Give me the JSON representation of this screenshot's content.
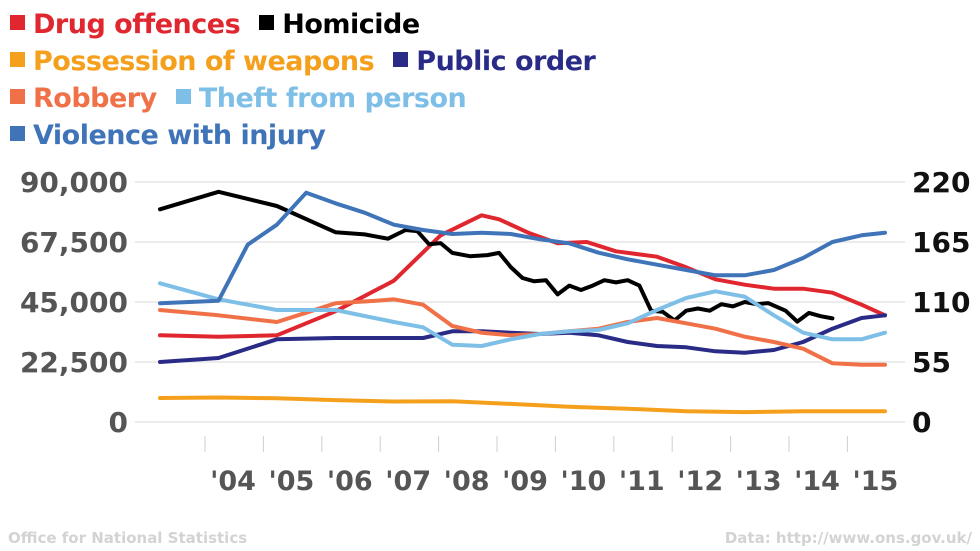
{
  "chart_data": {
    "type": "line",
    "x_labels": [
      "'04",
      "'05",
      "'06",
      "'07",
      "'08",
      "'09",
      "'10",
      "'11",
      "'12",
      "'13",
      "'14",
      "'15"
    ],
    "y_left": {
      "ticks": [
        0,
        22500,
        45000,
        67500,
        90000
      ],
      "tick_labels": [
        "0",
        "22,500",
        "45,000",
        "67,500",
        "90,000"
      ],
      "ylim": [
        0,
        90000
      ]
    },
    "y_right": {
      "ticks": [
        0,
        55,
        110,
        165,
        220
      ],
      "tick_labels": [
        "0",
        "55",
        "110",
        "165",
        "220"
      ],
      "ylim": [
        0,
        220
      ],
      "series": [
        "Homicide"
      ]
    },
    "grid": true,
    "legend_position": "top-left",
    "series": [
      {
        "name": "Drug offences",
        "color": "#e0262e",
        "axis": "left",
        "points": [
          [
            2003.0,
            32500
          ],
          [
            2004.0,
            32000
          ],
          [
            2005.0,
            32500
          ],
          [
            2006.0,
            41500
          ],
          [
            2007.0,
            53000
          ],
          [
            2007.8,
            70000
          ],
          [
            2008.5,
            77500
          ],
          [
            2008.8,
            76000
          ],
          [
            2009.3,
            71000
          ],
          [
            2009.8,
            67000
          ],
          [
            2010.3,
            67500
          ],
          [
            2010.8,
            64000
          ],
          [
            2011.5,
            62000
          ],
          [
            2012.0,
            58000
          ],
          [
            2012.5,
            53500
          ],
          [
            2013.0,
            51500
          ],
          [
            2013.5,
            50000
          ],
          [
            2014.0,
            50000
          ],
          [
            2014.5,
            48500
          ],
          [
            2015.0,
            44000
          ],
          [
            2015.4,
            40000
          ]
        ]
      },
      {
        "name": "Homicide",
        "color": "#000000",
        "axis": "right",
        "points": [
          [
            2003.0,
            195
          ],
          [
            2004.0,
            211
          ],
          [
            2005.0,
            198
          ],
          [
            2006.0,
            174
          ],
          [
            2006.5,
            172
          ],
          [
            2006.9,
            168
          ],
          [
            2007.2,
            176
          ],
          [
            2007.4,
            175
          ],
          [
            2007.6,
            163
          ],
          [
            2007.8,
            164
          ],
          [
            2008.0,
            155
          ],
          [
            2008.3,
            152
          ],
          [
            2008.6,
            153
          ],
          [
            2008.8,
            155
          ],
          [
            2009.0,
            142
          ],
          [
            2009.2,
            132
          ],
          [
            2009.4,
            129
          ],
          [
            2009.6,
            130
          ],
          [
            2009.8,
            117
          ],
          [
            2010.0,
            125
          ],
          [
            2010.2,
            121
          ],
          [
            2010.4,
            125
          ],
          [
            2010.6,
            130
          ],
          [
            2010.8,
            128
          ],
          [
            2011.0,
            130
          ],
          [
            2011.2,
            125
          ],
          [
            2011.4,
            102
          ],
          [
            2011.6,
            101
          ],
          [
            2011.8,
            93
          ],
          [
            2012.0,
            102
          ],
          [
            2012.2,
            104
          ],
          [
            2012.4,
            102
          ],
          [
            2012.6,
            108
          ],
          [
            2012.8,
            106
          ],
          [
            2013.0,
            110
          ],
          [
            2013.2,
            108
          ],
          [
            2013.4,
            109
          ],
          [
            2013.7,
            102
          ],
          [
            2013.9,
            92
          ],
          [
            2014.1,
            100
          ],
          [
            2014.3,
            97
          ],
          [
            2014.5,
            95
          ]
        ]
      },
      {
        "name": "Possession of weapons",
        "color": "#f5a01d",
        "axis": "left",
        "points": [
          [
            2003.0,
            9000
          ],
          [
            2004.0,
            9200
          ],
          [
            2005.0,
            8900
          ],
          [
            2006.0,
            8200
          ],
          [
            2007.0,
            7700
          ],
          [
            2008.0,
            7800
          ],
          [
            2009.0,
            6800
          ],
          [
            2010.0,
            5700
          ],
          [
            2011.0,
            5000
          ],
          [
            2012.0,
            4000
          ],
          [
            2013.0,
            3700
          ],
          [
            2014.0,
            4000
          ],
          [
            2015.4,
            4000
          ]
        ]
      },
      {
        "name": "Public order",
        "color": "#2a2b87",
        "axis": "left",
        "points": [
          [
            2003.0,
            22500
          ],
          [
            2004.0,
            24000
          ],
          [
            2005.0,
            31000
          ],
          [
            2006.0,
            31500
          ],
          [
            2007.0,
            31500
          ],
          [
            2007.5,
            31500
          ],
          [
            2008.0,
            34000
          ],
          [
            2008.5,
            34000
          ],
          [
            2009.0,
            33500
          ],
          [
            2009.5,
            33000
          ],
          [
            2010.0,
            33500
          ],
          [
            2010.5,
            32500
          ],
          [
            2011.0,
            30000
          ],
          [
            2011.5,
            28500
          ],
          [
            2012.0,
            28000
          ],
          [
            2012.5,
            26500
          ],
          [
            2013.0,
            26000
          ],
          [
            2013.5,
            27000
          ],
          [
            2014.0,
            30000
          ],
          [
            2014.5,
            35000
          ],
          [
            2015.0,
            39000
          ],
          [
            2015.4,
            40000
          ]
        ]
      },
      {
        "name": "Robbery",
        "color": "#f07048",
        "axis": "left",
        "points": [
          [
            2003.0,
            42000
          ],
          [
            2004.0,
            40000
          ],
          [
            2005.0,
            37500
          ],
          [
            2005.5,
            41000
          ],
          [
            2006.0,
            44500
          ],
          [
            2006.7,
            45500
          ],
          [
            2007.0,
            46000
          ],
          [
            2007.5,
            44000
          ],
          [
            2008.0,
            36000
          ],
          [
            2008.5,
            33500
          ],
          [
            2009.0,
            32500
          ],
          [
            2009.5,
            33000
          ],
          [
            2010.0,
            34000
          ],
          [
            2010.5,
            35000
          ],
          [
            2011.0,
            37500
          ],
          [
            2011.5,
            39000
          ],
          [
            2012.0,
            37000
          ],
          [
            2012.5,
            35000
          ],
          [
            2013.0,
            32000
          ],
          [
            2013.5,
            30000
          ],
          [
            2014.0,
            27500
          ],
          [
            2014.5,
            22000
          ],
          [
            2015.0,
            21500
          ],
          [
            2015.4,
            21500
          ]
        ]
      },
      {
        "name": "Theft from person",
        "color": "#7dbfe6",
        "axis": "left",
        "points": [
          [
            2003.0,
            52000
          ],
          [
            2004.0,
            46000
          ],
          [
            2005.0,
            42000
          ],
          [
            2006.0,
            42000
          ],
          [
            2007.0,
            37500
          ],
          [
            2007.5,
            35500
          ],
          [
            2008.0,
            29000
          ],
          [
            2008.5,
            28500
          ],
          [
            2009.0,
            31000
          ],
          [
            2009.5,
            33000
          ],
          [
            2010.0,
            34000
          ],
          [
            2010.5,
            34500
          ],
          [
            2011.0,
            37000
          ],
          [
            2011.5,
            42000
          ],
          [
            2012.0,
            46500
          ],
          [
            2012.5,
            49000
          ],
          [
            2013.0,
            47000
          ],
          [
            2013.5,
            40000
          ],
          [
            2014.0,
            33500
          ],
          [
            2014.5,
            31000
          ],
          [
            2015.0,
            31000
          ],
          [
            2015.4,
            33500
          ]
        ]
      },
      {
        "name": "Violence with injury",
        "color": "#3f74b8",
        "axis": "left",
        "points": [
          [
            2003.0,
            44500
          ],
          [
            2004.0,
            45500
          ],
          [
            2004.5,
            66500
          ],
          [
            2005.0,
            74000
          ],
          [
            2005.5,
            86000
          ],
          [
            2006.0,
            82000
          ],
          [
            2006.5,
            78500
          ],
          [
            2007.0,
            74000
          ],
          [
            2007.5,
            72000
          ],
          [
            2008.0,
            70500
          ],
          [
            2008.5,
            71000
          ],
          [
            2009.0,
            70500
          ],
          [
            2009.5,
            68500
          ],
          [
            2010.0,
            67000
          ],
          [
            2010.5,
            63500
          ],
          [
            2011.0,
            61000
          ],
          [
            2011.5,
            59000
          ],
          [
            2012.0,
            57000
          ],
          [
            2012.5,
            55000
          ],
          [
            2013.0,
            55000
          ],
          [
            2013.5,
            57000
          ],
          [
            2014.0,
            61500
          ],
          [
            2014.5,
            67500
          ],
          [
            2015.0,
            70000
          ],
          [
            2015.4,
            71000
          ]
        ]
      }
    ]
  },
  "footer": {
    "source": "Office for National Statistics",
    "data_link": "Data: http://www.ons.gov.uk/"
  }
}
